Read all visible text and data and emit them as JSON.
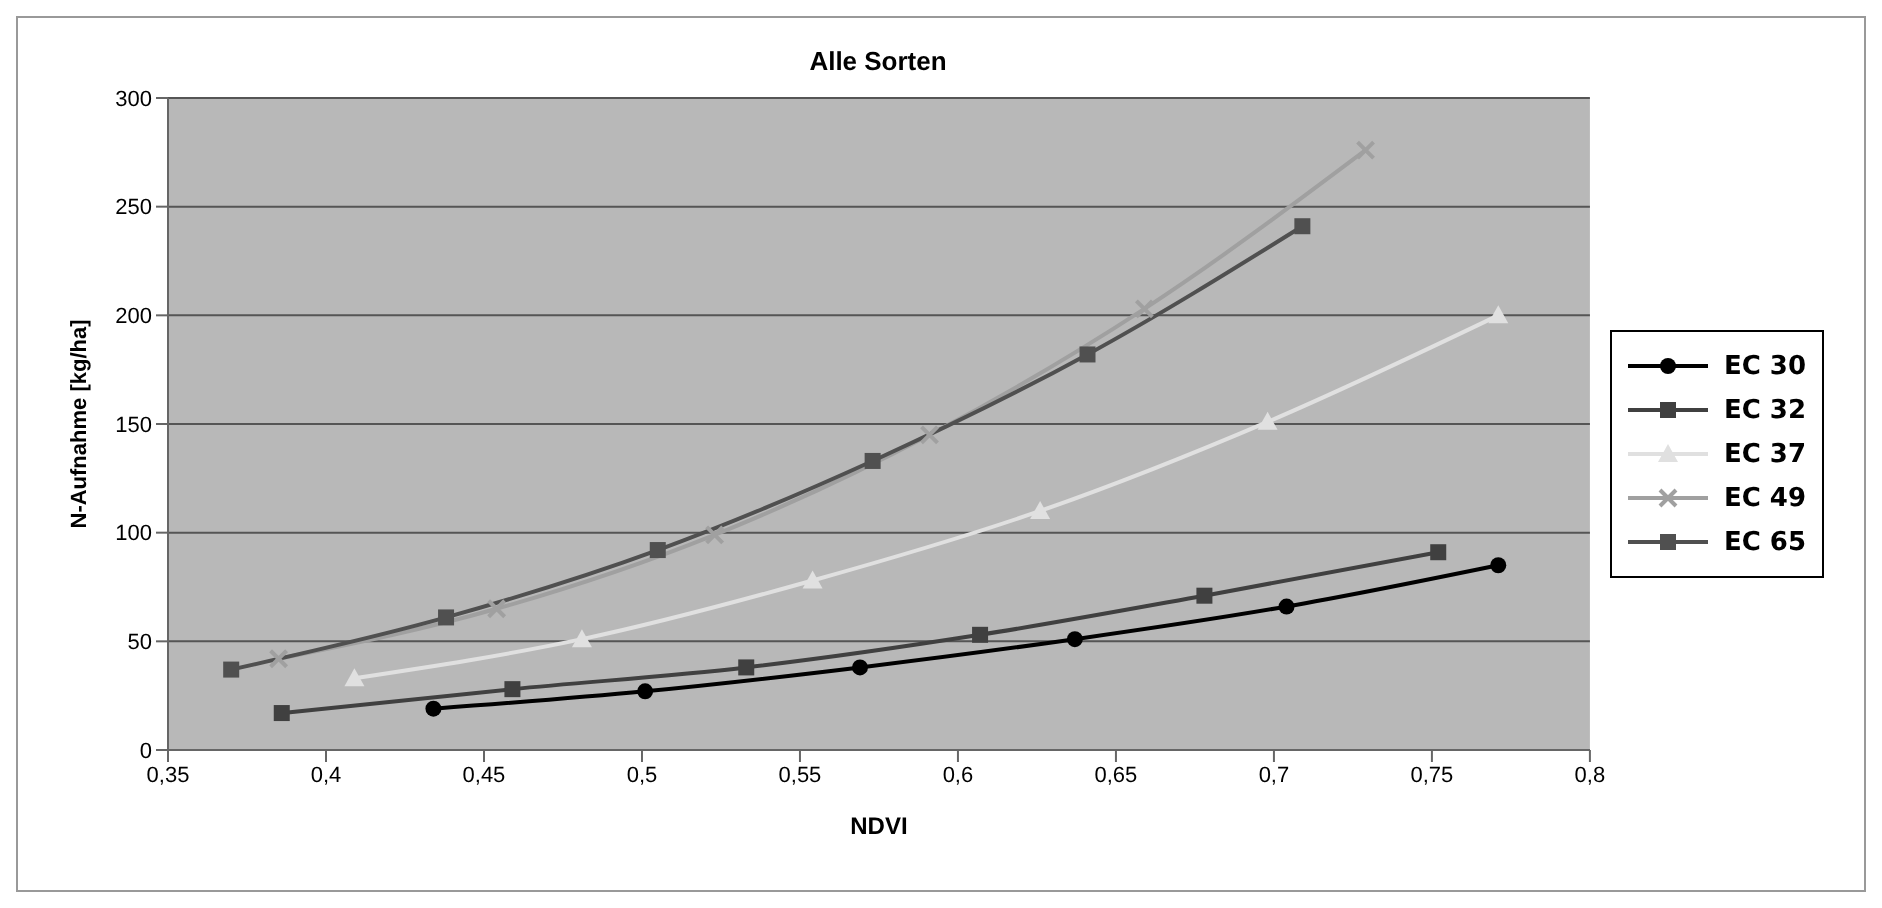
{
  "chart_data": {
    "type": "line",
    "title": "Alle Sorten",
    "xlabel": "NDVI",
    "ylabel": "N-Aufnahme [kg/ha]",
    "xlim": [
      0.35,
      0.8
    ],
    "xticks": [
      {
        "value": 0.35,
        "label": "0,35"
      },
      {
        "value": 0.4,
        "label": "0,4"
      },
      {
        "value": 0.45,
        "label": "0,45"
      },
      {
        "value": 0.5,
        "label": "0,5"
      },
      {
        "value": 0.55,
        "label": "0,55"
      },
      {
        "value": 0.6,
        "label": "0,6"
      },
      {
        "value": 0.65,
        "label": "0,65"
      },
      {
        "value": 0.7,
        "label": "0,7"
      },
      {
        "value": 0.75,
        "label": "0,75"
      },
      {
        "value": 0.8,
        "label": "0,8"
      }
    ],
    "ylim": [
      0,
      300
    ],
    "yticks": [
      0,
      50,
      100,
      150,
      200,
      250,
      300
    ],
    "grid": "y",
    "legend": "right",
    "series": [
      {
        "name": "EC 30",
        "color": "#000000",
        "marker": "circle",
        "x": [
          0.434,
          0.501,
          0.569,
          0.637,
          0.704,
          0.771
        ],
        "values": [
          19,
          27,
          38,
          51,
          66,
          85
        ]
      },
      {
        "name": "EC 32",
        "color": "#404040",
        "marker": "square",
        "x": [
          0.386,
          0.459,
          0.533,
          0.607,
          0.678,
          0.752
        ],
        "values": [
          17,
          28,
          38,
          53,
          71,
          91
        ]
      },
      {
        "name": "EC 37",
        "color": "#e0e0e0",
        "marker": "triangle",
        "x": [
          0.409,
          0.481,
          0.554,
          0.626,
          0.698,
          0.771
        ],
        "values": [
          33,
          51,
          78,
          110,
          151,
          200
        ]
      },
      {
        "name": "EC 49",
        "color": "#a0a0a0",
        "marker": "cross",
        "x": [
          0.385,
          0.454,
          0.523,
          0.591,
          0.659,
          0.729
        ],
        "values": [
          42,
          65,
          99,
          145,
          203,
          276
        ]
      },
      {
        "name": "EC 65",
        "color": "#505050",
        "marker": "square",
        "x": [
          0.37,
          0.438,
          0.505,
          0.573,
          0.641,
          0.709
        ],
        "values": [
          37,
          61,
          92,
          133,
          182,
          241
        ]
      }
    ]
  }
}
